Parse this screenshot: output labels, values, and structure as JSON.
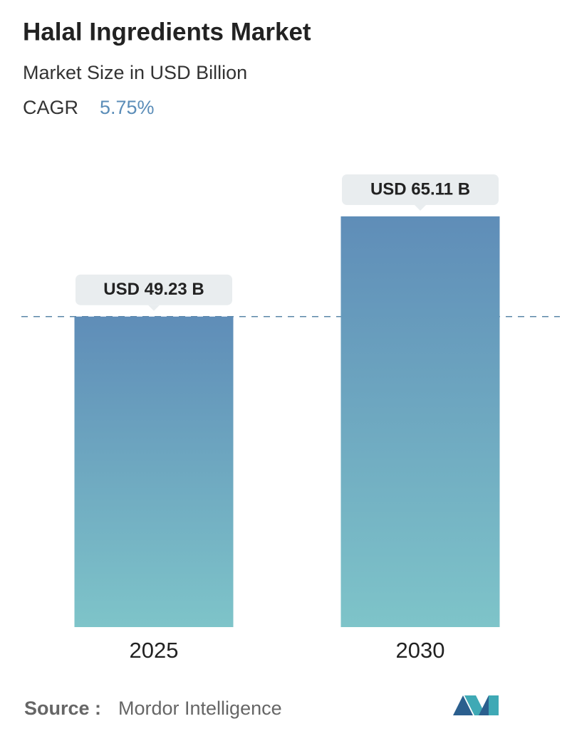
{
  "chart_data": {
    "type": "bar",
    "title": "Halal Ingredients Market",
    "subtitle": "Market Size in USD Billion",
    "cagr_label": "CAGR",
    "cagr_value": "5.75%",
    "categories": [
      "2025",
      "2030"
    ],
    "values": [
      49.23,
      65.11
    ],
    "value_labels": [
      "USD 49.23 B",
      "USD 65.11 B"
    ],
    "color": "#6496bb",
    "source_label": "Source :",
    "source": "Mordor Intelligence"
  }
}
